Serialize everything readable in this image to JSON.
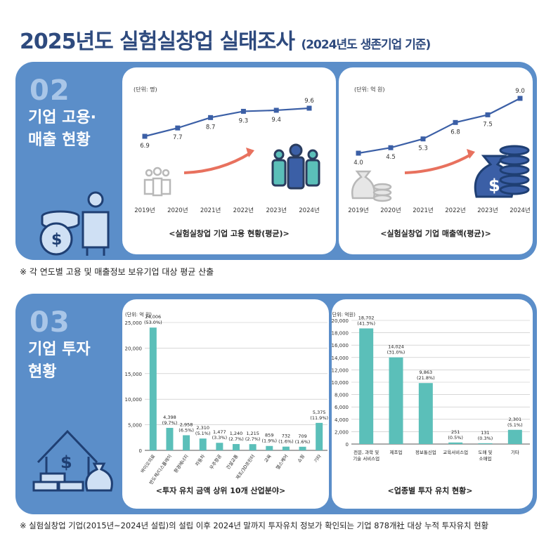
{
  "header": {
    "title": "2025년도 실험실창업 실태조사",
    "subtitle": "(2024년도 생존기업 기준)"
  },
  "section2": {
    "number": "02",
    "title": "기업 고용·\n매출 현황",
    "footnote": "※ 각 연도별 고용 및 매출정보 보유기업 대상 평균 산출"
  },
  "section3": {
    "number": "03",
    "title": "기업 투자\n현황",
    "footnote": "※ 실험실창업 기업(2015년~2024년 설립)의 설립 이후 2024년 말까지 투자유치 정보가 확인되는 기업 878개社 대상 누적 투자유치 현황"
  },
  "chart_data": [
    {
      "type": "line",
      "title": "<실험실창업 기업 고용 현황(평균)>",
      "unit_label": "(단위: 명)",
      "x": [
        "2019년",
        "2020년",
        "2021년",
        "2022년",
        "2023년",
        "2024년"
      ],
      "series": [
        {
          "values": [
            6.9,
            7.7,
            8.7,
            9.3,
            9.4,
            9.6
          ]
        }
      ],
      "value_labels": [
        "6.9",
        "7.7",
        "8.7",
        "9.3",
        "9.4",
        "9.6"
      ],
      "color": "#3b5fa6"
    },
    {
      "type": "line",
      "title": "<실험실창업 기업 매출액(평균)>",
      "unit_label": "(단위: 억 원)",
      "x": [
        "2019년",
        "2020년",
        "2021년",
        "2022년",
        "2023년",
        "2024년"
      ],
      "series": [
        {
          "values": [
            4.0,
            4.5,
            5.3,
            6.8,
            7.5,
            9.0
          ]
        }
      ],
      "value_labels": [
        "4.0",
        "4.5",
        "5.3",
        "6.8",
        "7.5",
        "9.0"
      ],
      "color": "#3b5fa6"
    },
    {
      "type": "bar",
      "title": "<투자 유치 금액 상위 10개 산업분야>",
      "unit_label": "(단위: 억 원)",
      "categories": [
        "바이오의료",
        "반도체/디스플레이",
        "환경에너지",
        "자동차",
        "우주항공",
        "건설교통",
        "제조/3D프린터",
        "교육",
        "헬스케어",
        "쇼핑",
        "기타"
      ],
      "values": [
        24006,
        4398,
        2958,
        2310,
        1477,
        1240,
        1215,
        859,
        732,
        709,
        5375
      ],
      "value_labels": [
        "24,006",
        "4,398",
        "2,958",
        "2,310",
        "1,477",
        "1,240",
        "1,215",
        "859",
        "732",
        "709",
        "5,375"
      ],
      "percent_labels": [
        "(53.0%)",
        "(9.7%)",
        "(6.5%)",
        "(5.1%)",
        "(3.3%)",
        "(2.7%)",
        "(2.7%)",
        "(1.9%)",
        "(1.6%)",
        "(1.6%)",
        "(11.9%)"
      ],
      "ylim": [
        0,
        25000
      ],
      "yticks": [
        "0",
        "5,000",
        "10,000",
        "15,000",
        "20,000",
        "25,000"
      ],
      "color": "#5bbfb9"
    },
    {
      "type": "bar",
      "title": "<업종별 투자 유치 현황>",
      "unit_label": "(단위: 억원)",
      "categories": [
        "전문, 과학 및\n기술 서비스업",
        "제조업",
        "정보통신업",
        "교육서비스업",
        "도매 및\n소매업",
        "기타"
      ],
      "values": [
        18702,
        14024,
        9863,
        251,
        131,
        2301
      ],
      "value_labels": [
        "18,702",
        "14,024",
        "9,863",
        "251",
        "131",
        "2,301"
      ],
      "percent_labels": [
        "(41.3%)",
        "(31.0%)",
        "(21.8%)",
        "(0.5%)",
        "(0.3%)",
        "(5.1%)"
      ],
      "ylim": [
        0,
        20000
      ],
      "yticks": [
        "0",
        "2,000",
        "4,000",
        "6,000",
        "8,000",
        "10,000",
        "12,000",
        "14,000",
        "16,000",
        "18,000",
        "20,000"
      ],
      "color": "#5bbfb9"
    }
  ]
}
